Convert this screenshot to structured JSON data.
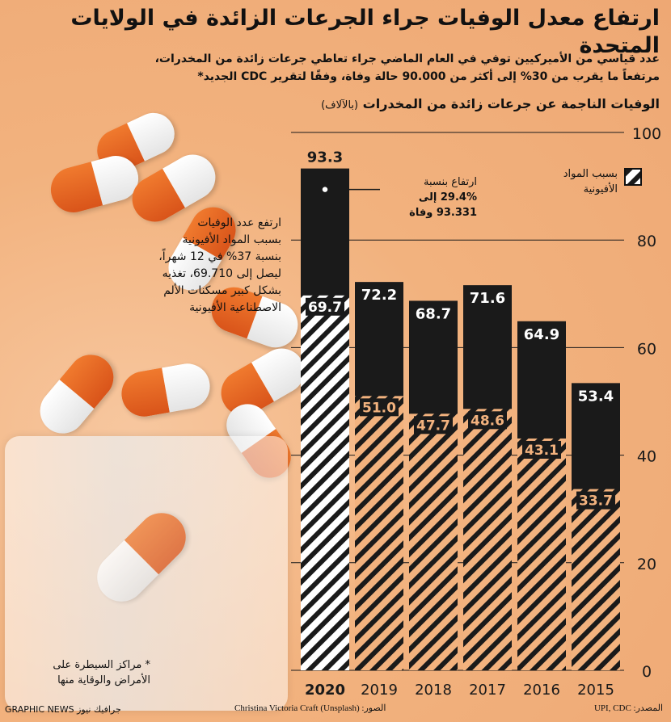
{
  "title": "ارتفاع معدل الوفيات جراء الجرعات الزائدة في الولايات المتحدة",
  "subtitle_line1": "عدد قياسي من الأميركيين توفي  في العام الماضي جراء تعاطي جرعات زائدة من المخدرات،",
  "subtitle_line2": "مرتفعاً ما يقرب من 30% إلى أكثر من 90.000 حالة وفاة، وفقًا لتقرير CDC الجديد*",
  "side_note_lines": [
    "ارتفع عدد الوفيات",
    "بسبب المواد الأفيونية",
    "بنسبة 37% في 12 شهراً،",
    "ليصل إلى 69.710، تغذيه",
    "بشكل كبير مسكنات الألم",
    "الاصطناعية الأفيونية"
  ],
  "footnote_lines": [
    "* مراكز السيطرة على",
    "الأمراض والوقاية منها"
  ],
  "credits": {
    "brand": "GRAPHIC NEWS جرافيك نيوز",
    "photo": "الصور: Christina Victoria Craft (Unsplash)",
    "source": "المصدر: UPI, CDC"
  },
  "chart_data": {
    "type": "bar",
    "title": "الوفيات الناجمة عن جرعات زائدة من المخدرات",
    "unit": "(بالآلاف)",
    "categories": [
      "2020",
      "2019",
      "2018",
      "2017",
      "2016",
      "2015"
    ],
    "series": [
      {
        "name": "",
        "values": [
          93.3,
          72.2,
          68.7,
          71.6,
          64.9,
          53.4
        ]
      },
      {
        "name": "بسبب المواد الأفيونية",
        "values": [
          69.7,
          51.0,
          47.7,
          48.6,
          43.1,
          33.7
        ]
      }
    ],
    "total_labels": [
      "93.3",
      "72.2",
      "68.7",
      "71.6",
      "64.9",
      "53.4"
    ],
    "opioid_labels": [
      "69.7",
      "51.0",
      "47.7",
      "48.6",
      "43.1",
      "33.7"
    ],
    "ylim": [
      0,
      100
    ],
    "yticks": [
      "100",
      "80",
      "60",
      "40",
      "20",
      "0"
    ],
    "ytick_values": [
      100,
      80,
      60,
      40,
      20,
      0
    ],
    "legend_lines": [
      "بسبب المواد",
      "الأفيونية"
    ],
    "annotation_lines": [
      "ارتفاع بنسبة",
      "29.4% إلى",
      "93.331 وفاة"
    ],
    "colors": {
      "total": "#1a1a1a",
      "opioid_stripe": "#1a1a1a",
      "highlight": "#ffffff",
      "accent": "#f2b27e"
    }
  }
}
